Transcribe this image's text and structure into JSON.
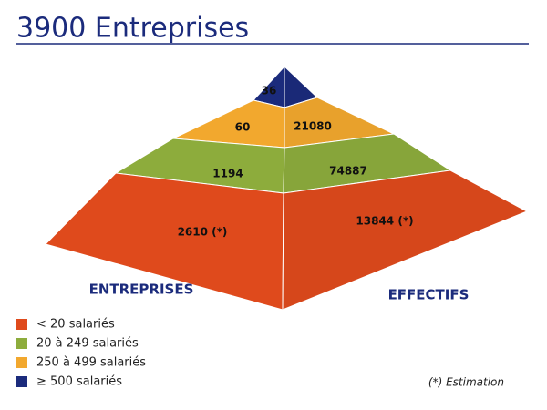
{
  "title": "3900 Entreprises",
  "pyramid": {
    "levels": [
      {
        "color": "#1b2b7c",
        "left": "36"
      },
      {
        "color": "#f2a82e",
        "left": "60",
        "right": "21080"
      },
      {
        "color": "#8dac3c",
        "left": "1194",
        "right": "74887"
      },
      {
        "color": "#df4a1c",
        "left": "2610 (*)",
        "right": "13844 (*)"
      }
    ]
  },
  "face_labels": {
    "left": "ENTREPRISES",
    "right": "EFFECTIFS"
  },
  "legend": [
    {
      "color": "#df4a1c",
      "label": "< 20 salariés"
    },
    {
      "color": "#8dac3c",
      "label": "20 à 249 salariés"
    },
    {
      "color": "#f2a82e",
      "label": "250 à 499 salariés"
    },
    {
      "color": "#1b2b7c",
      "label": "≥ 500 salariés"
    }
  ],
  "footnote": "(*) Estimation"
}
